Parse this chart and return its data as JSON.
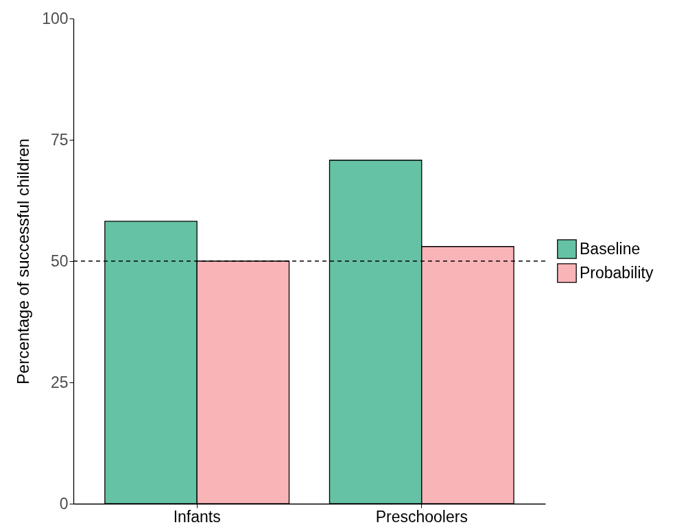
{
  "chart_data": {
    "type": "bar",
    "ylabel": "Percentage of successful children",
    "categories": [
      "Infants",
      "Preschoolers"
    ],
    "series": [
      {
        "name": "Baseline",
        "color": "#66c2a5",
        "values": [
          58.2,
          70.8
        ]
      },
      {
        "name": "Probability",
        "color": "#f9b4b8",
        "values": [
          50,
          53
        ]
      }
    ],
    "ylim": [
      0,
      100
    ],
    "yticks": [
      0,
      25,
      50,
      75,
      100
    ],
    "grid": false,
    "legend": "right",
    "ref_lines": [
      {
        "axis": "y",
        "value": 50,
        "line_style": "dashed",
        "color": "#000000"
      }
    ]
  }
}
